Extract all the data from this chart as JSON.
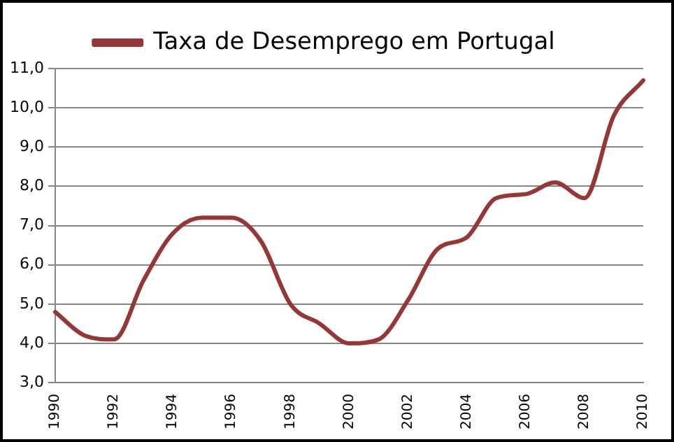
{
  "chart_data": {
    "type": "line",
    "categories": [
      "1990",
      null,
      "1992",
      null,
      "1994",
      null,
      "1996",
      null,
      "1998",
      null,
      "2000",
      null,
      "2002",
      null,
      "2004",
      null,
      "2006",
      null,
      "2008",
      null,
      "2010"
    ],
    "series": [
      {
        "name": "Taxa de Desemprego em Portugal",
        "color": "#953735",
        "values": [
          4.8,
          4.2,
          4.1,
          5.6,
          6.8,
          7.2,
          7.2,
          6.6,
          5.0,
          4.5,
          4.0,
          4.1,
          5.1,
          6.4,
          6.7,
          7.7,
          7.8,
          8.1,
          7.7,
          9.8,
          10.7
        ]
      }
    ],
    "ylim": [
      3,
      11
    ],
    "yticks": [
      {
        "value": 3,
        "label": "3,0"
      },
      {
        "value": 4,
        "label": "4,0"
      },
      {
        "value": 5,
        "label": "5,0"
      },
      {
        "value": 6,
        "label": "6,0"
      },
      {
        "value": 7,
        "label": "7,0"
      },
      {
        "value": 8,
        "label": "8,0"
      },
      {
        "value": 9,
        "label": "9,0"
      },
      {
        "value": 10,
        "label": "10,0"
      },
      {
        "value": 11,
        "label": "11,0"
      }
    ],
    "grid": "y",
    "legend": "top",
    "marker": "none",
    "line_style": "solid"
  }
}
